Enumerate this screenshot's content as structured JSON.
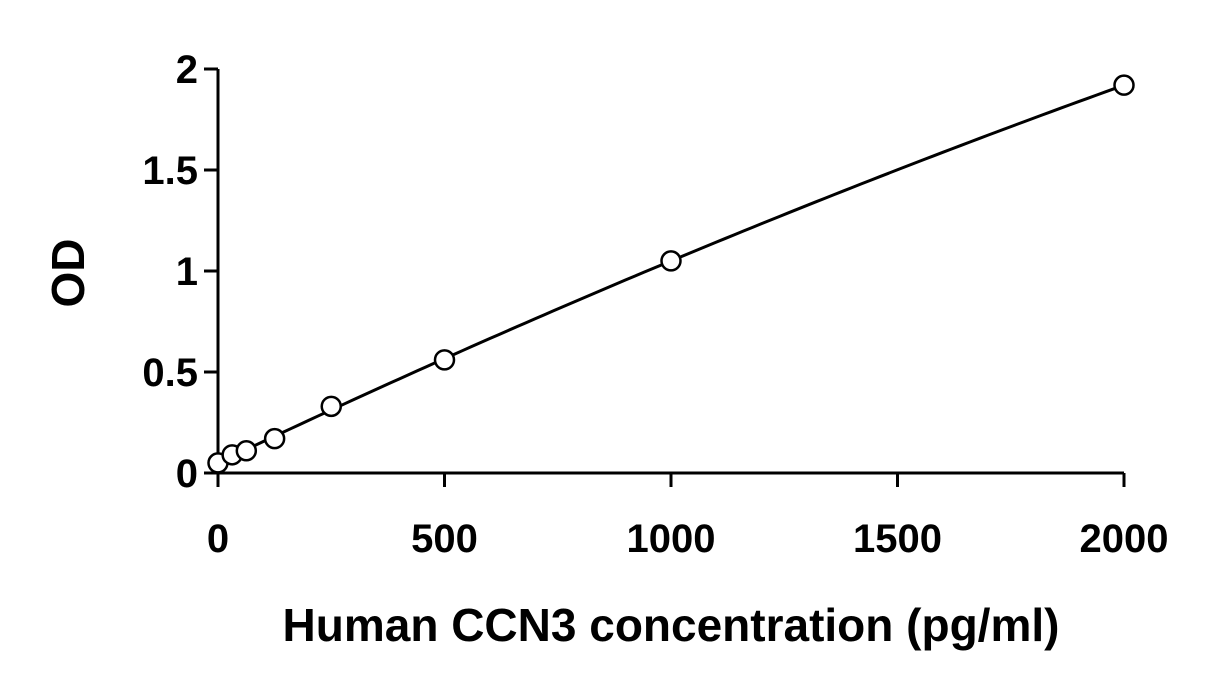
{
  "chart_data": {
    "type": "scatter",
    "title": "",
    "xlabel": "Human CCN3 concentration (pg/ml)",
    "ylabel": "OD",
    "xlim": [
      0,
      2000
    ],
    "ylim": [
      0,
      2
    ],
    "x_ticks": [
      0,
      500,
      1000,
      1500,
      2000
    ],
    "y_ticks": [
      0,
      0.5,
      1,
      1.5,
      2
    ],
    "x_tick_labels": [
      "0",
      "500",
      "1000",
      "1500",
      "2000"
    ],
    "y_tick_labels": [
      "0",
      "0.5",
      "1",
      "1.5",
      "2"
    ],
    "grid": false,
    "legend": "none",
    "series": [
      {
        "marker": "open-circle",
        "trendline": true,
        "x": [
          0,
          31.25,
          62.5,
          125,
          250,
          500,
          1000,
          2000
        ],
        "y": [
          0.05,
          0.09,
          0.11,
          0.17,
          0.33,
          0.56,
          1.05,
          1.92
        ]
      }
    ]
  }
}
